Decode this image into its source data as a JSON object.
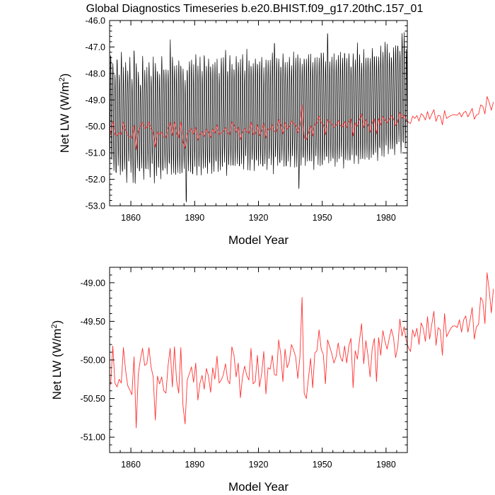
{
  "figure": {
    "title": "Global Diagnostics Timeseries b.e20.BHIST.f09_g17.20thC.157_01"
  },
  "chart_data": [
    {
      "type": "line",
      "title": "Global Diagnostics Timeseries b.e20.BHIST.f09_g17.20thC.157_01",
      "xlabel": "Model Year",
      "ylabel": "Net LW (W/m²)",
      "ylabel_parts": [
        "Net LW (W/m",
        "2",
        ")"
      ],
      "xlim": [
        1850,
        1990
      ],
      "ylim": [
        -53.0,
        -46.0
      ],
      "x_ticks": [
        1860,
        1890,
        1920,
        1950,
        1980
      ],
      "x_tick_labels": [
        "1860",
        "1890",
        "1920",
        "1950",
        "1980"
      ],
      "y_ticks": [
        -53.0,
        -52.0,
        -51.0,
        -50.0,
        -49.0,
        -48.0,
        -47.0,
        -46.0
      ],
      "y_tick_labels": [
        "-53.0",
        "-52.0",
        "-51.0",
        "-50.0",
        "-49.0",
        "-48.0",
        "-47.0",
        "-46.0"
      ],
      "grid": false,
      "series": [
        {
          "kind": "monthly",
          "color": "#000000",
          "annual_peak_month": 7,
          "summer_high": [
            -47.2,
            -47.7,
            -48.0,
            -47.3,
            -48.1,
            -47.1,
            -47.9,
            -47.6,
            -47.8,
            -47.5,
            -48.2,
            -47.0,
            -47.7,
            -47.9,
            -48.3,
            -47.4,
            -47.8,
            -47.9,
            -47.6,
            -48.0,
            -47.5,
            -47.6,
            -47.8,
            -48.1,
            -47.3,
            -47.7,
            -47.9,
            -47.8,
            -46.9,
            -47.4,
            -47.6,
            -47.8,
            -47.5,
            -47.6,
            -47.9,
            -48.2,
            -47.7,
            -47.6,
            -47.4,
            -47.8,
            -47.3,
            -47.6,
            -47.5,
            -47.9,
            -47.2,
            -47.8,
            -47.4,
            -47.6,
            -47.7,
            -47.5,
            -47.6,
            -48.0,
            -47.3,
            -47.5,
            -47.1,
            -47.8,
            -47.4,
            -47.6,
            -47.7,
            -47.4,
            -47.5,
            -47.6,
            -47.3,
            -47.8,
            -47.2,
            -47.5,
            -47.6,
            -47.7,
            -47.4,
            -47.5,
            -47.6,
            -47.3,
            -47.9,
            -47.5,
            -47.4,
            -47.6,
            -47.2,
            -46.7,
            -47.5,
            -47.4,
            -47.6,
            -47.3,
            -47.5,
            -47.7,
            -47.4,
            -47.6,
            -47.3,
            -47.4,
            -47.2,
            -47.5,
            -47.6,
            -47.3,
            -47.5,
            -47.2,
            -47.4,
            -47.6,
            -47.3,
            -47.5,
            -47.4,
            -47.1,
            -47.3,
            -47.5,
            -46.3,
            -47.6,
            -47.3,
            -47.4,
            -47.5,
            -47.2,
            -47.3,
            -47.4,
            -47.1,
            -47.5,
            -47.2,
            -47.6,
            -47.3,
            -47.4,
            -47.0,
            -47.3,
            -47.5,
            -47.2,
            -47.4,
            -47.3,
            -47.5,
            -47.0,
            -47.2,
            -47.4,
            -47.3,
            -47.1,
            -47.2,
            -46.7,
            -47.0,
            -47.2,
            -47.3,
            -47.1,
            -46.9,
            -46.8,
            -47.2,
            -46.4,
            -46.6,
            -47.1
          ],
          "winter_low": [
            -51.3,
            -51.6,
            -51.9,
            -51.5,
            -51.7,
            -51.8,
            -51.6,
            -52.0,
            -51.4,
            -51.7,
            -51.9,
            -52.2,
            -51.5,
            -51.8,
            -51.6,
            -51.9,
            -51.7,
            -51.6,
            -51.8,
            -51.5,
            -52.1,
            -51.7,
            -51.6,
            -51.9,
            -51.8,
            -51.6,
            -51.7,
            -51.5,
            -51.8,
            -51.6,
            -51.9,
            -51.7,
            -51.6,
            -51.8,
            -51.5,
            -53.0,
            -51.7,
            -51.6,
            -51.9,
            -51.5,
            -51.7,
            -51.6,
            -51.8,
            -51.4,
            -51.6,
            -51.7,
            -51.5,
            -51.8,
            -51.6,
            -51.4,
            -51.7,
            -51.5,
            -51.6,
            -51.3,
            -51.7,
            -51.5,
            -51.4,
            -51.6,
            -51.5,
            -51.3,
            -51.6,
            -51.4,
            -51.5,
            -51.2,
            -51.6,
            -51.5,
            -51.3,
            -51.6,
            -51.4,
            -51.5,
            -51.3,
            -51.6,
            -51.4,
            -51.5,
            -51.3,
            -51.4,
            -51.6,
            -51.2,
            -51.4,
            -51.5,
            -51.3,
            -51.4,
            -51.6,
            -51.3,
            -51.4,
            -51.2,
            -51.5,
            -51.3,
            -52.4,
            -51.4,
            -51.3,
            -51.5,
            -51.2,
            -51.4,
            -51.3,
            -51.5,
            -51.2,
            -51.4,
            -51.3,
            -51.5,
            -51.2,
            -51.3,
            -51.4,
            -51.2,
            -51.3,
            -51.5,
            -51.2,
            -51.3,
            -51.1,
            -51.4,
            -51.3,
            -51.2,
            -51.4,
            -51.1,
            -51.3,
            -51.2,
            -51.4,
            -51.1,
            -51.3,
            -51.2,
            -51.0,
            -51.3,
            -51.1,
            -51.2,
            -51.0,
            -51.2,
            -50.9,
            -51.1,
            -51.0,
            -50.8,
            -51.0,
            -50.7,
            -50.9,
            -51.0,
            -50.8,
            -50.6,
            -50.9,
            -50.7,
            -50.8,
            -50.6
          ]
        },
        {
          "kind": "annual",
          "color": "#ff3333",
          "x_start": 1850.5,
          "values": [
            -50.32,
            -49.82,
            -50.3,
            -50.35,
            -50.25,
            -50.3,
            -49.84,
            -50.13,
            -50.33,
            -50.39,
            -50.45,
            -49.96,
            -50.88,
            -50.18,
            -49.99,
            -49.85,
            -50.07,
            -50.05,
            -49.84,
            -50.09,
            -50.22,
            -50.78,
            -50.21,
            -50.31,
            -50.22,
            -50.4,
            -50.43,
            -50.07,
            -49.85,
            -50.35,
            -49.83,
            -50.27,
            -50.43,
            -49.84,
            -50.59,
            -50.83,
            -50.26,
            -50.18,
            -50.09,
            -50.29,
            -50.04,
            -50.52,
            -50.3,
            -50.2,
            -50.38,
            -50.11,
            -50.21,
            -50.42,
            -50.1,
            -50.25,
            -49.95,
            -50.3,
            -50.26,
            -50.19,
            -50.05,
            -50.26,
            -50.31,
            -49.83,
            -49.94,
            -50.22,
            -50.04,
            -50.49,
            -50.22,
            -50.08,
            -50.2,
            -50.26,
            -49.85,
            -50.31,
            -50.28,
            -49.94,
            -50.35,
            -50.18,
            -49.89,
            -50.44,
            -50.1,
            -50.12,
            -49.94,
            -50.19,
            -50.2,
            -49.74,
            -49.93,
            -50.28,
            -49.86,
            -50.1,
            -50.02,
            -49.8,
            -49.87,
            -49.96,
            -50.24,
            -49.96,
            -49.19,
            -50.43,
            -50.5,
            -50.24,
            -49.98,
            -50.36,
            -49.91,
            -49.88,
            -49.61,
            -49.86,
            -49.93,
            -50.31,
            -49.74,
            -49.83,
            -49.92,
            -50.04,
            -49.96,
            -49.78,
            -49.96,
            -50.02,
            -49.82,
            -50.04,
            -49.82,
            -49.72,
            -50.36,
            -49.88,
            -49.99,
            -49.75,
            -49.53,
            -50.05,
            -49.75,
            -49.94,
            -50.22,
            -49.85,
            -49.72,
            -50.28,
            -49.71,
            -49.94,
            -49.62,
            -49.76,
            -49.86,
            -49.72,
            -49.6,
            -49.71,
            -49.97,
            -49.83,
            -49.47,
            -49.69,
            -49.57,
            -49.75,
            -49.84,
            -49.89,
            -49.61,
            -49.7,
            -49.59,
            -49.8,
            -49.52,
            -49.59,
            -49.76,
            -49.44,
            -49.73,
            -49.54,
            -49.37,
            -49.81,
            -49.58,
            -49.61,
            -49.94,
            -49.4,
            -49.7,
            -49.64,
            -49.59,
            -49.56,
            -49.56,
            -49.58,
            -49.48,
            -49.64,
            -49.48,
            -49.43,
            -49.64,
            -49.49,
            -49.32,
            -49.73,
            -49.57,
            -49.54,
            -49.19,
            -49.24,
            -49.53,
            -48.87,
            -49.09,
            -49.39,
            -49.08
          ]
        }
      ]
    },
    {
      "type": "line",
      "title": "",
      "xlabel": "Model Year",
      "ylabel": "Net LW (W/m²)",
      "ylabel_parts": [
        "Net LW (W/m",
        "2",
        ")"
      ],
      "xlim": [
        1850,
        1990
      ],
      "ylim": [
        -51.2,
        -48.8
      ],
      "x_ticks": [
        1860,
        1890,
        1920,
        1950,
        1980
      ],
      "x_tick_labels": [
        "1860",
        "1890",
        "1920",
        "1950",
        "1980"
      ],
      "y_ticks": [
        -51.0,
        -50.5,
        -50.0,
        -49.5,
        -49.0
      ],
      "y_tick_labels": [
        "-51.00",
        "-50.50",
        "-50.00",
        "-49.50",
        "-49.00"
      ],
      "grid": false,
      "series": [
        {
          "kind": "annual",
          "color": "#ff3333",
          "x_start": 1850.5,
          "values": [
            -50.32,
            -49.82,
            -50.3,
            -50.35,
            -50.25,
            -50.3,
            -49.84,
            -50.13,
            -50.33,
            -50.39,
            -50.45,
            -49.96,
            -50.88,
            -50.18,
            -49.99,
            -49.85,
            -50.07,
            -50.05,
            -49.84,
            -50.09,
            -50.22,
            -50.78,
            -50.21,
            -50.31,
            -50.22,
            -50.4,
            -50.43,
            -50.07,
            -49.85,
            -50.35,
            -49.83,
            -50.27,
            -50.43,
            -49.84,
            -50.59,
            -50.83,
            -50.26,
            -50.18,
            -50.09,
            -50.29,
            -50.04,
            -50.52,
            -50.3,
            -50.2,
            -50.38,
            -50.11,
            -50.21,
            -50.42,
            -50.1,
            -50.25,
            -49.95,
            -50.3,
            -50.26,
            -50.19,
            -50.05,
            -50.26,
            -50.31,
            -49.83,
            -49.94,
            -50.22,
            -50.04,
            -50.49,
            -50.22,
            -50.08,
            -50.2,
            -50.26,
            -49.85,
            -50.31,
            -50.28,
            -49.94,
            -50.35,
            -50.18,
            -49.89,
            -50.44,
            -50.1,
            -50.12,
            -49.94,
            -50.19,
            -50.2,
            -49.74,
            -49.93,
            -50.28,
            -49.86,
            -50.1,
            -50.02,
            -49.8,
            -49.87,
            -49.96,
            -50.24,
            -49.96,
            -49.19,
            -50.43,
            -50.5,
            -50.24,
            -49.98,
            -50.36,
            -49.91,
            -49.88,
            -49.61,
            -49.86,
            -49.93,
            -50.31,
            -49.74,
            -49.83,
            -49.92,
            -50.04,
            -49.96,
            -49.78,
            -49.96,
            -50.02,
            -49.82,
            -50.04,
            -49.82,
            -49.72,
            -50.36,
            -49.88,
            -49.99,
            -49.75,
            -49.53,
            -50.05,
            -49.75,
            -49.94,
            -50.22,
            -49.85,
            -49.72,
            -50.28,
            -49.71,
            -49.94,
            -49.62,
            -49.76,
            -49.86,
            -49.72,
            -49.6,
            -49.71,
            -49.97,
            -49.83,
            -49.47,
            -49.69,
            -49.57,
            -49.75,
            -49.84,
            -49.89,
            -49.61,
            -49.7,
            -49.59,
            -49.8,
            -49.52,
            -49.59,
            -49.76,
            -49.44,
            -49.73,
            -49.54,
            -49.37,
            -49.81,
            -49.58,
            -49.61,
            -49.94,
            -49.4,
            -49.7,
            -49.64,
            -49.59,
            -49.56,
            -49.56,
            -49.58,
            -49.48,
            -49.64,
            -49.48,
            -49.43,
            -49.64,
            -49.49,
            -49.32,
            -49.73,
            -49.57,
            -49.54,
            -49.19,
            -49.24,
            -49.53,
            -48.87,
            -49.09,
            -49.39,
            -49.08
          ]
        }
      ]
    }
  ]
}
